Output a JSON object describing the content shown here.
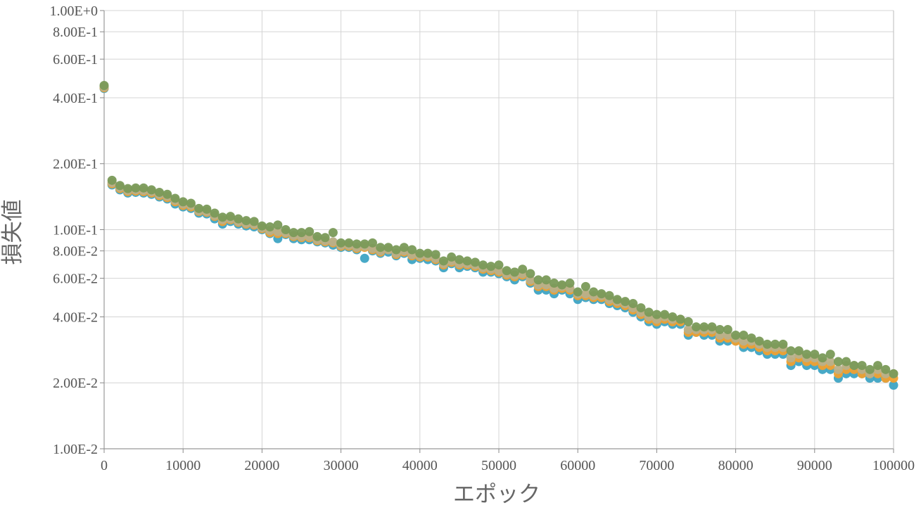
{
  "chart_data": {
    "type": "scatter",
    "title": "",
    "xlabel": "エポック",
    "ylabel": "損失値",
    "xlim": [
      0,
      100000
    ],
    "ylim": [
      0.01,
      1.0
    ],
    "yscale": "log",
    "grid": true,
    "x_ticks": [
      "0",
      "10000",
      "20000",
      "30000",
      "40000",
      "50000",
      "60000",
      "70000",
      "80000",
      "90000",
      "100000"
    ],
    "x_tick_values": [
      0,
      10000,
      20000,
      30000,
      40000,
      50000,
      60000,
      70000,
      80000,
      90000,
      100000
    ],
    "y_ticks": [
      "1.00E-2",
      "2.00E-2",
      "4.00E-2",
      "6.00E-2",
      "8.00E-2",
      "1.00E-1",
      "2.00E-1",
      "4.00E-1",
      "6.00E-1",
      "8.00E-1",
      "1.00E+0"
    ],
    "y_tick_values": [
      0.01,
      0.02,
      0.04,
      0.06,
      0.08,
      0.1,
      0.2,
      0.4,
      0.6,
      0.8,
      1.0
    ],
    "x": [
      0,
      1000,
      2000,
      3000,
      4000,
      5000,
      6000,
      7000,
      8000,
      9000,
      10000,
      11000,
      12000,
      13000,
      14000,
      15000,
      16000,
      17000,
      18000,
      19000,
      20000,
      21000,
      22000,
      23000,
      24000,
      25000,
      26000,
      27000,
      28000,
      29000,
      30000,
      31000,
      32000,
      33000,
      34000,
      35000,
      36000,
      37000,
      38000,
      39000,
      40000,
      41000,
      42000,
      43000,
      44000,
      45000,
      46000,
      47000,
      48000,
      49000,
      50000,
      51000,
      52000,
      53000,
      54000,
      55000,
      56000,
      57000,
      58000,
      59000,
      60000,
      61000,
      62000,
      63000,
      64000,
      65000,
      66000,
      67000,
      68000,
      69000,
      70000,
      71000,
      72000,
      73000,
      74000,
      75000,
      76000,
      77000,
      78000,
      79000,
      80000,
      81000,
      82000,
      83000,
      84000,
      85000,
      86000,
      87000,
      88000,
      89000,
      90000,
      91000,
      92000,
      93000,
      94000,
      95000,
      96000,
      97000,
      98000,
      99000,
      100000
    ],
    "series": [
      {
        "color": "#3ea4c4",
        "values": [
          0.441,
          0.16,
          0.152,
          0.147,
          0.148,
          0.147,
          0.145,
          0.141,
          0.138,
          0.131,
          0.127,
          0.125,
          0.119,
          0.118,
          0.112,
          0.106,
          0.109,
          0.106,
          0.104,
          0.103,
          0.1,
          0.096,
          0.091,
          0.095,
          0.091,
          0.09,
          0.09,
          0.088,
          0.087,
          0.085,
          0.083,
          0.083,
          0.081,
          0.074,
          0.08,
          0.078,
          0.079,
          0.076,
          0.078,
          0.073,
          0.074,
          0.073,
          0.072,
          0.067,
          0.07,
          0.067,
          0.068,
          0.067,
          0.064,
          0.064,
          0.063,
          0.061,
          0.059,
          0.061,
          0.057,
          0.053,
          0.053,
          0.051,
          0.053,
          0.051,
          0.048,
          0.049,
          0.048,
          0.048,
          0.046,
          0.045,
          0.044,
          0.042,
          0.04,
          0.038,
          0.037,
          0.038,
          0.037,
          0.037,
          0.033,
          0.034,
          0.033,
          0.033,
          0.031,
          0.031,
          0.031,
          0.029,
          0.029,
          0.028,
          0.027,
          0.027,
          0.027,
          0.024,
          0.025,
          0.024,
          0.024,
          0.023,
          0.023,
          0.021,
          0.022,
          0.022,
          0.022,
          0.021,
          0.021,
          0.021,
          0.0195
        ]
      },
      {
        "color": "#f0a030",
        "values": [
          0.444,
          0.162,
          0.154,
          0.149,
          0.15,
          0.149,
          0.147,
          0.143,
          0.14,
          0.134,
          0.129,
          0.127,
          0.121,
          0.12,
          0.115,
          0.109,
          0.111,
          0.108,
          0.106,
          0.105,
          0.101,
          0.097,
          0.096,
          0.096,
          0.093,
          0.092,
          0.092,
          0.089,
          0.088,
          0.087,
          0.084,
          0.084,
          0.082,
          0.083,
          0.081,
          0.079,
          0.081,
          0.077,
          0.079,
          0.076,
          0.075,
          0.075,
          0.073,
          0.069,
          0.071,
          0.069,
          0.069,
          0.068,
          0.066,
          0.065,
          0.064,
          0.062,
          0.061,
          0.062,
          0.058,
          0.055,
          0.055,
          0.053,
          0.054,
          0.053,
          0.05,
          0.05,
          0.049,
          0.049,
          0.047,
          0.046,
          0.045,
          0.043,
          0.041,
          0.039,
          0.038,
          0.039,
          0.038,
          0.038,
          0.034,
          0.034,
          0.034,
          0.034,
          0.032,
          0.032,
          0.031,
          0.03,
          0.03,
          0.029,
          0.028,
          0.028,
          0.028,
          0.025,
          0.026,
          0.025,
          0.025,
          0.024,
          0.024,
          0.022,
          0.023,
          0.023,
          0.022,
          0.022,
          0.022,
          0.021,
          0.021
        ]
      },
      {
        "color": "#b8b08a",
        "values": [
          0.448,
          0.164,
          0.156,
          0.151,
          0.152,
          0.151,
          0.149,
          0.145,
          0.142,
          0.136,
          0.131,
          0.129,
          0.122,
          0.121,
          0.116,
          0.111,
          0.112,
          0.109,
          0.107,
          0.106,
          0.102,
          0.099,
          0.098,
          0.097,
          0.094,
          0.093,
          0.093,
          0.09,
          0.089,
          0.088,
          0.085,
          0.085,
          0.083,
          0.084,
          0.082,
          0.08,
          0.081,
          0.078,
          0.08,
          0.077,
          0.076,
          0.076,
          0.074,
          0.07,
          0.072,
          0.07,
          0.07,
          0.069,
          0.067,
          0.066,
          0.065,
          0.063,
          0.062,
          0.063,
          0.059,
          0.056,
          0.056,
          0.054,
          0.055,
          0.054,
          0.051,
          0.051,
          0.05,
          0.05,
          0.048,
          0.047,
          0.046,
          0.044,
          0.042,
          0.04,
          0.039,
          0.04,
          0.039,
          0.039,
          0.035,
          0.035,
          0.035,
          0.035,
          0.033,
          0.033,
          0.032,
          0.031,
          0.031,
          0.03,
          0.029,
          0.029,
          0.029,
          0.026,
          0.027,
          0.026,
          0.026,
          0.025,
          0.025,
          0.023,
          0.024,
          0.024,
          0.023,
          0.022,
          0.023,
          0.022,
          0.022
        ]
      },
      {
        "color": "#7a9a58",
        "values": [
          0.455,
          0.168,
          0.159,
          0.154,
          0.155,
          0.155,
          0.152,
          0.148,
          0.145,
          0.139,
          0.134,
          0.132,
          0.125,
          0.124,
          0.119,
          0.114,
          0.115,
          0.112,
          0.11,
          0.109,
          0.104,
          0.103,
          0.105,
          0.1,
          0.097,
          0.097,
          0.098,
          0.093,
          0.092,
          0.097,
          0.087,
          0.087,
          0.086,
          0.086,
          0.087,
          0.083,
          0.083,
          0.081,
          0.083,
          0.081,
          0.078,
          0.078,
          0.077,
          0.072,
          0.075,
          0.073,
          0.072,
          0.071,
          0.069,
          0.068,
          0.069,
          0.065,
          0.064,
          0.066,
          0.063,
          0.059,
          0.059,
          0.057,
          0.056,
          0.057,
          0.052,
          0.055,
          0.052,
          0.051,
          0.05,
          0.048,
          0.047,
          0.046,
          0.044,
          0.042,
          0.041,
          0.041,
          0.04,
          0.039,
          0.038,
          0.036,
          0.036,
          0.036,
          0.035,
          0.035,
          0.033,
          0.033,
          0.032,
          0.031,
          0.03,
          0.03,
          0.03,
          0.028,
          0.028,
          0.027,
          0.027,
          0.026,
          0.027,
          0.025,
          0.025,
          0.024,
          0.024,
          0.023,
          0.024,
          0.023,
          0.022
        ]
      }
    ]
  }
}
